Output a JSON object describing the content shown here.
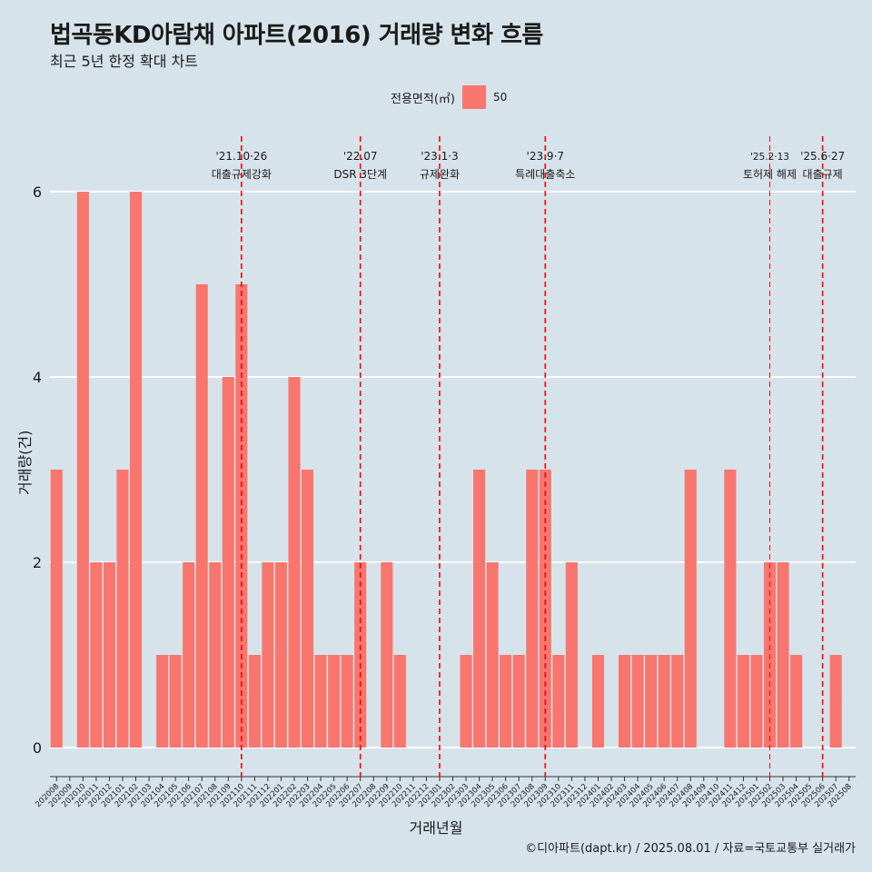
{
  "header": {
    "title": "법곡동KD아람채 아파트(2016) 거래량 변화 흐름",
    "subtitle": "최근 5년 한정 확대 차트"
  },
  "legend": {
    "title": "전용면적(㎡)",
    "items": [
      {
        "label": "50",
        "color": "#f8766d"
      }
    ]
  },
  "caption": "©디아파트(dapt.kr) / 2025.08.01 / 자료=국토교통부 실거래가",
  "chart_data": {
    "type": "bar",
    "xlabel": "거래년월",
    "ylabel": "거래량(건)",
    "ylim": [
      0,
      6
    ],
    "yticks": [
      0,
      2,
      4,
      6
    ],
    "grid": true,
    "bar_color": "#f8766d",
    "categories": [
      "202008",
      "202009",
      "202010",
      "202011",
      "202012",
      "202101",
      "202102",
      "202103",
      "202104",
      "202105",
      "202106",
      "202107",
      "202108",
      "202109",
      "202110",
      "202111",
      "202112",
      "202201",
      "202202",
      "202203",
      "202204",
      "202205",
      "202206",
      "202207",
      "202208",
      "202209",
      "202210",
      "202211",
      "202212",
      "202301",
      "202302",
      "202303",
      "202304",
      "202305",
      "202306",
      "202307",
      "202308",
      "202309",
      "202310",
      "202311",
      "202312",
      "202401",
      "202402",
      "202403",
      "202404",
      "202405",
      "202406",
      "202407",
      "202408",
      "202409",
      "202410",
      "202411",
      "202412",
      "202501",
      "202502",
      "202503",
      "202504",
      "202505",
      "202506",
      "202507",
      "202508"
    ],
    "values": [
      3,
      0,
      6,
      2,
      2,
      3,
      6,
      0,
      1,
      1,
      2,
      5,
      2,
      4,
      5,
      1,
      2,
      2,
      4,
      3,
      1,
      1,
      1,
      2,
      0,
      2,
      1,
      0,
      0,
      0,
      0,
      1,
      3,
      2,
      1,
      1,
      3,
      3,
      1,
      2,
      0,
      1,
      0,
      1,
      1,
      1,
      1,
      1,
      3,
      0,
      0,
      3,
      1,
      1,
      2,
      2,
      1,
      0,
      0,
      1,
      0
    ],
    "annotations": [
      {
        "index": 14.5,
        "date": "'21.10·26",
        "label": "대출규제강화",
        "thin": false
      },
      {
        "index": 23.5,
        "date": "'22.07",
        "label": "DSR 3단계",
        "thin": false
      },
      {
        "index": 29.5,
        "date": "'23.1·3",
        "label": "규제완화",
        "thin": false
      },
      {
        "index": 37.5,
        "date": "'23.9·7",
        "label": "특례대출축소",
        "thin": false
      },
      {
        "index": 54.5,
        "date": "'25.2·13",
        "label": "토허제 해제",
        "thin": true
      },
      {
        "index": 58.5,
        "date": "'25.6·27",
        "label": "대출규제",
        "thin": false
      }
    ]
  }
}
